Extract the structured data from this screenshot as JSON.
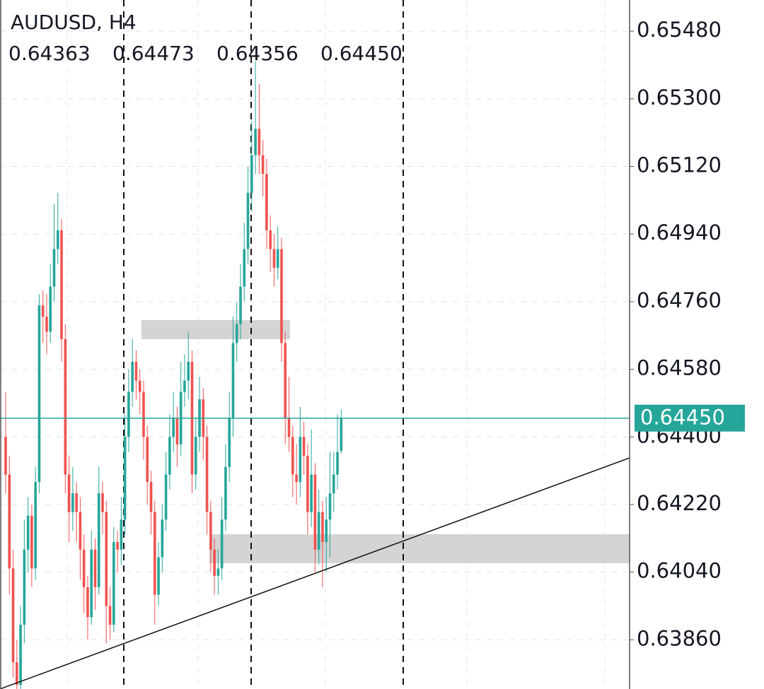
{
  "chart_data": {
    "type": "candlestick",
    "title": "AUDUSD, H4",
    "ohlc_labels": [
      "0.64363",
      "0.64473",
      "0.64356",
      "0.64450"
    ],
    "up_color": "#26a69a",
    "down_color": "#ef5350",
    "ylim": [
      0.63729,
      0.65563
    ],
    "yticks": [
      {
        "value": 0.6548,
        "label": "0.65480"
      },
      {
        "value": 0.653,
        "label": "0.65300"
      },
      {
        "value": 0.6512,
        "label": "0.65120"
      },
      {
        "value": 0.6494,
        "label": "0.64940"
      },
      {
        "value": 0.6476,
        "label": "0.64760"
      },
      {
        "value": 0.6458,
        "label": "0.64580"
      },
      {
        "value": 0.644,
        "label": "0.64400"
      },
      {
        "value": 0.6422,
        "label": "0.64220"
      },
      {
        "value": 0.6404,
        "label": "0.64040"
      },
      {
        "value": 0.6386,
        "label": "0.63860"
      }
    ],
    "grid": true,
    "last_price": {
      "value": 0.6445,
      "label": "0.64450",
      "color": "#26a69a"
    },
    "candles": [
      [
        0.644,
        0.6452,
        0.6425,
        0.643
      ],
      [
        0.643,
        0.6435,
        0.6398,
        0.6405
      ],
      [
        0.6405,
        0.641,
        0.6376,
        0.638
      ],
      [
        0.638,
        0.6386,
        0.6372,
        0.6374
      ],
      [
        0.6374,
        0.6395,
        0.6372,
        0.639
      ],
      [
        0.639,
        0.6418,
        0.6385,
        0.641
      ],
      [
        0.641,
        0.6424,
        0.6404,
        0.6419
      ],
      [
        0.6419,
        0.6422,
        0.64,
        0.6405
      ],
      [
        0.6405,
        0.6432,
        0.6402,
        0.6428
      ],
      [
        0.6428,
        0.6478,
        0.6425,
        0.6475
      ],
      [
        0.6475,
        0.6479,
        0.6465,
        0.6472
      ],
      [
        0.6472,
        0.6478,
        0.6462,
        0.6468
      ],
      [
        0.6468,
        0.6486,
        0.6465,
        0.648
      ],
      [
        0.648,
        0.6502,
        0.6476,
        0.649
      ],
      [
        0.649,
        0.6505,
        0.6486,
        0.6495
      ],
      [
        0.6495,
        0.6498,
        0.646,
        0.6466
      ],
      [
        0.6466,
        0.647,
        0.6425,
        0.643
      ],
      [
        0.643,
        0.6435,
        0.6412,
        0.642
      ],
      [
        0.642,
        0.6432,
        0.6415,
        0.6425
      ],
      [
        0.6425,
        0.6428,
        0.6412,
        0.642
      ],
      [
        0.642,
        0.6424,
        0.6402,
        0.641
      ],
      [
        0.641,
        0.6414,
        0.6393,
        0.64
      ],
      [
        0.64,
        0.6403,
        0.6386,
        0.6392
      ],
      [
        0.6392,
        0.6415,
        0.639,
        0.641
      ],
      [
        0.641,
        0.6413,
        0.6394,
        0.64
      ],
      [
        0.64,
        0.6432,
        0.6398,
        0.6425
      ],
      [
        0.6425,
        0.6428,
        0.6414,
        0.642
      ],
      [
        0.642,
        0.6423,
        0.6385,
        0.6395
      ],
      [
        0.6395,
        0.64,
        0.6386,
        0.639
      ],
      [
        0.639,
        0.6416,
        0.6388,
        0.6412
      ],
      [
        0.6412,
        0.6415,
        0.6404,
        0.641
      ],
      [
        0.641,
        0.6424,
        0.6406,
        0.6418
      ],
      [
        0.6418,
        0.6446,
        0.6414,
        0.644
      ],
      [
        0.644,
        0.6458,
        0.6436,
        0.6452
      ],
      [
        0.6452,
        0.6466,
        0.6448,
        0.646
      ],
      [
        0.646,
        0.6463,
        0.645,
        0.6455
      ],
      [
        0.6455,
        0.6458,
        0.6446,
        0.6452
      ],
      [
        0.6452,
        0.6455,
        0.6434,
        0.644
      ],
      [
        0.644,
        0.6443,
        0.6422,
        0.6428
      ],
      [
        0.6428,
        0.6431,
        0.6414,
        0.642
      ],
      [
        0.642,
        0.6423,
        0.639,
        0.6398
      ],
      [
        0.6398,
        0.6412,
        0.6395,
        0.6408
      ],
      [
        0.6408,
        0.6422,
        0.6404,
        0.6418
      ],
      [
        0.6418,
        0.6436,
        0.6415,
        0.643
      ],
      [
        0.643,
        0.6446,
        0.6426,
        0.644
      ],
      [
        0.644,
        0.6452,
        0.6436,
        0.6445
      ],
      [
        0.6445,
        0.6448,
        0.6432,
        0.6438
      ],
      [
        0.6438,
        0.646,
        0.6435,
        0.6452
      ],
      [
        0.6452,
        0.6462,
        0.6448,
        0.6455
      ],
      [
        0.6455,
        0.6468,
        0.645,
        0.646
      ],
      [
        0.646,
        0.6463,
        0.6425,
        0.643
      ],
      [
        0.643,
        0.6445,
        0.6426,
        0.644
      ],
      [
        0.644,
        0.6456,
        0.6436,
        0.645
      ],
      [
        0.645,
        0.6453,
        0.6434,
        0.644
      ],
      [
        0.644,
        0.6443,
        0.6414,
        0.642
      ],
      [
        0.642,
        0.6423,
        0.6404,
        0.641
      ],
      [
        0.641,
        0.6413,
        0.6398,
        0.6403
      ],
      [
        0.6403,
        0.641,
        0.6398,
        0.6405
      ],
      [
        0.6405,
        0.6424,
        0.6402,
        0.6418
      ],
      [
        0.6418,
        0.6438,
        0.6415,
        0.6432
      ],
      [
        0.6432,
        0.6452,
        0.6428,
        0.6445
      ],
      [
        0.6445,
        0.6472,
        0.644,
        0.6465
      ],
      [
        0.6465,
        0.6476,
        0.646,
        0.647
      ],
      [
        0.647,
        0.6486,
        0.6466,
        0.648
      ],
      [
        0.648,
        0.6497,
        0.6476,
        0.649
      ],
      [
        0.649,
        0.6512,
        0.6486,
        0.6505
      ],
      [
        0.6505,
        0.6524,
        0.65,
        0.6515
      ],
      [
        0.6515,
        0.654,
        0.651,
        0.6522
      ],
      [
        0.6522,
        0.6534,
        0.651,
        0.6515
      ],
      [
        0.6515,
        0.6519,
        0.6504,
        0.651
      ],
      [
        0.651,
        0.6514,
        0.649,
        0.6495
      ],
      [
        0.6495,
        0.6499,
        0.6484,
        0.649
      ],
      [
        0.649,
        0.6494,
        0.648,
        0.6485
      ],
      [
        0.6485,
        0.6496,
        0.6482,
        0.649
      ],
      [
        0.649,
        0.6493,
        0.646,
        0.6465
      ],
      [
        0.6465,
        0.6468,
        0.6438,
        0.6445
      ],
      [
        0.6445,
        0.6456,
        0.6436,
        0.644
      ],
      [
        0.644,
        0.6443,
        0.6424,
        0.643
      ],
      [
        0.643,
        0.6438,
        0.6422,
        0.6428
      ],
      [
        0.6428,
        0.6448,
        0.6424,
        0.644
      ],
      [
        0.644,
        0.6444,
        0.643,
        0.6435
      ],
      [
        0.6435,
        0.6438,
        0.6414,
        0.642
      ],
      [
        0.642,
        0.6442,
        0.6416,
        0.643
      ],
      [
        0.643,
        0.6433,
        0.6404,
        0.641
      ],
      [
        0.641,
        0.6426,
        0.6406,
        0.642
      ],
      [
        0.642,
        0.6423,
        0.64,
        0.6412
      ],
      [
        0.6412,
        0.6424,
        0.6404,
        0.6418
      ],
      [
        0.6418,
        0.6436,
        0.6408,
        0.6425
      ],
      [
        0.6425,
        0.6436,
        0.642,
        0.643
      ],
      [
        0.643,
        0.6446,
        0.6426,
        0.6436
      ],
      [
        0.64363,
        0.64473,
        0.64356,
        0.6445
      ]
    ]
  }
}
